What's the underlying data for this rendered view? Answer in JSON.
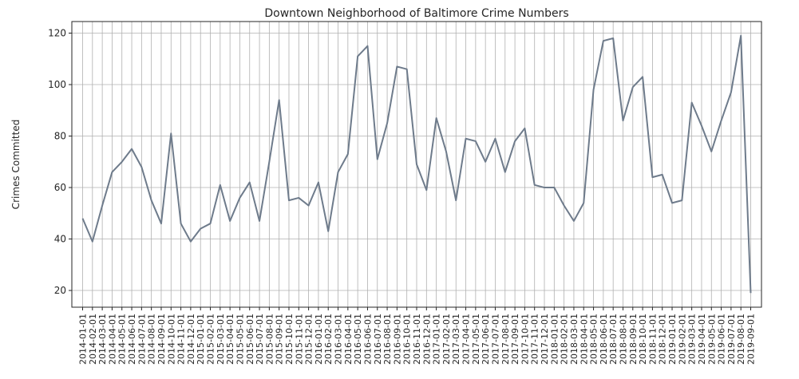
{
  "chart_data": {
    "type": "line",
    "title": "Downtown Neighborhood of Baltimore Crime Numbers",
    "xlabel": "",
    "ylabel": "Crimes Committed",
    "ylim": [
      13.5,
      124.5
    ],
    "yticks": [
      20,
      40,
      60,
      80,
      100,
      120
    ],
    "grid": true,
    "line_color": "#6e7b8b",
    "grid_color": "#b0b0b0",
    "x": [
      "2014-01-01",
      "2014-02-01",
      "2014-03-01",
      "2014-04-01",
      "2014-05-01",
      "2014-06-01",
      "2014-07-01",
      "2014-08-01",
      "2014-09-01",
      "2014-10-01",
      "2014-11-01",
      "2014-12-01",
      "2015-01-01",
      "2015-02-01",
      "2015-03-01",
      "2015-04-01",
      "2015-05-01",
      "2015-06-01",
      "2015-07-01",
      "2015-08-01",
      "2015-09-01",
      "2015-10-01",
      "2015-11-01",
      "2015-12-01",
      "2016-01-01",
      "2016-02-01",
      "2016-03-01",
      "2016-04-01",
      "2016-05-01",
      "2016-06-01",
      "2016-07-01",
      "2016-08-01",
      "2016-09-01",
      "2016-10-01",
      "2016-11-01",
      "2016-12-01",
      "2017-01-01",
      "2017-02-01",
      "2017-03-01",
      "2017-04-01",
      "2017-05-01",
      "2017-06-01",
      "2017-07-01",
      "2017-08-01",
      "2017-09-01",
      "2017-10-01",
      "2017-11-01",
      "2017-12-01",
      "2018-01-01",
      "2018-02-01",
      "2018-03-01",
      "2018-04-01",
      "2018-05-01",
      "2018-06-01",
      "2018-07-01",
      "2018-08-01",
      "2018-09-01",
      "2018-10-01",
      "2018-11-01",
      "2018-12-01",
      "2019-01-01",
      "2019-02-01",
      "2019-03-01",
      "2019-04-01",
      "2019-05-01",
      "2019-06-01",
      "2019-07-01",
      "2019-08-01",
      "2019-09-01"
    ],
    "series": [
      {
        "values": [
          48,
          39,
          53,
          66,
          70,
          75,
          68,
          55,
          46,
          81,
          46,
          39,
          44,
          46,
          61,
          47,
          56,
          62,
          47,
          70,
          94,
          55,
          56,
          53,
          62,
          43,
          66,
          73,
          111,
          115,
          71,
          85,
          107,
          106,
          69,
          59,
          87,
          74,
          55,
          79,
          78,
          70,
          79,
          66,
          78,
          83,
          61,
          60,
          60,
          53,
          47,
          54,
          98,
          117,
          118,
          86,
          99,
          103,
          64,
          65,
          54,
          55,
          93,
          84,
          74,
          86,
          97,
          119,
          19
        ]
      }
    ]
  }
}
